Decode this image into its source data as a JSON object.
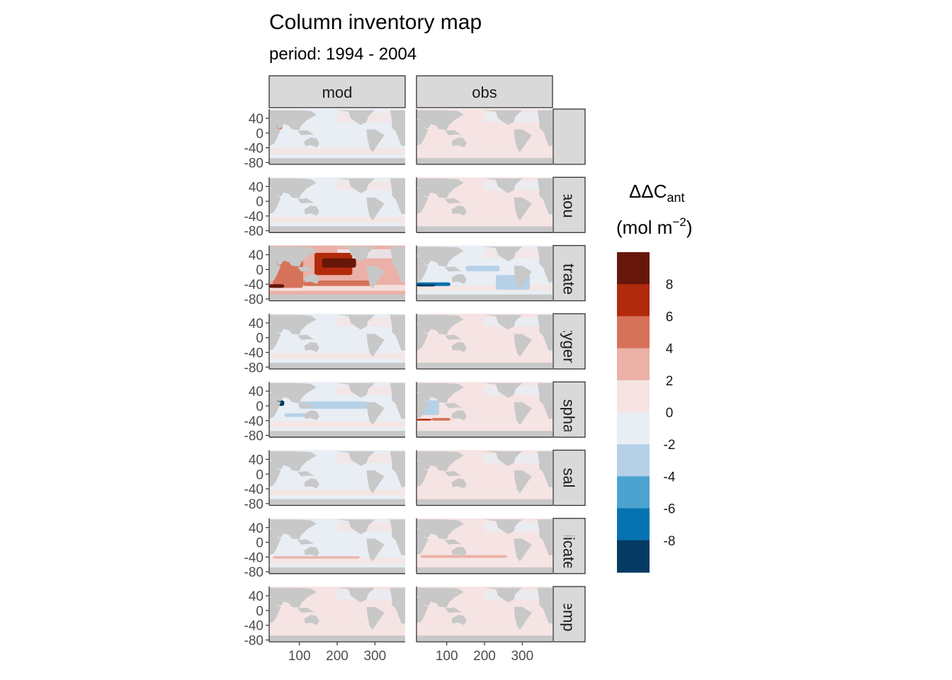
{
  "chart_data": {
    "type": "heatmap",
    "title": "Column inventory map",
    "subtitle": "period: 1994 - 2004",
    "xlabel": "",
    "ylabel": "",
    "columns": [
      "mod",
      "obs"
    ],
    "rows": [
      "",
      "aou",
      "nitrate",
      "oxygen",
      "phosphate",
      "sal",
      "silicate",
      "temp"
    ],
    "x_ticks": [
      100,
      200,
      300
    ],
    "y_ticks": [
      40,
      0,
      -40,
      -80
    ],
    "xlim": [
      20,
      380
    ],
    "ylim": [
      -85,
      65
    ],
    "legend": {
      "title_main": "ΔΔC",
      "title_sub": "ant",
      "unit_open": "(mol m",
      "unit_sup": "−2",
      "unit_close": ")",
      "position": "right",
      "breaks": [
        8,
        6,
        4,
        2,
        0,
        -2,
        -4,
        -6,
        -8
      ],
      "bins": [
        {
          "range": [
            8,
            10
          ],
          "color": "#67160a"
        },
        {
          "range": [
            6,
            8
          ],
          "color": "#b12a0b"
        },
        {
          "range": [
            4,
            6
          ],
          "color": "#d6725a"
        },
        {
          "range": [
            2,
            4
          ],
          "color": "#ebb0a6"
        },
        {
          "range": [
            0,
            2
          ],
          "color": "#f5e4e3"
        },
        {
          "range": [
            -2,
            0
          ],
          "color": "#e9eef4"
        },
        {
          "range": [
            -4,
            -2
          ],
          "color": "#b6d1e7"
        },
        {
          "range": [
            -6,
            -4
          ],
          "color": "#4da3cf"
        },
        {
          "range": [
            -8,
            -6
          ],
          "color": "#0672b0"
        },
        {
          "range": [
            -10,
            -8
          ],
          "color": "#053a63"
        }
      ]
    },
    "land_color": "#c8c8c8",
    "panel_dominant_bins": {
      "mod": {
        "": [
          -2,
          0
        ],
        "aou": [
          -2,
          0
        ],
        "nitrate": [
          2,
          4
        ],
        "oxygen": [
          -2,
          0
        ],
        "phosphate": [
          -2,
          0
        ],
        "sal": [
          -2,
          0
        ],
        "silicate": [
          -2,
          0
        ],
        "temp": [
          0,
          2
        ]
      },
      "obs": {
        "": [
          0,
          2
        ],
        "aou": [
          0,
          2
        ],
        "nitrate": [
          -2,
          0
        ],
        "oxygen": [
          0,
          2
        ],
        "phosphate": [
          0,
          2
        ],
        "sal": [
          0,
          2
        ],
        "silicate": [
          0,
          2
        ],
        "temp": [
          0,
          2
        ]
      }
    }
  }
}
